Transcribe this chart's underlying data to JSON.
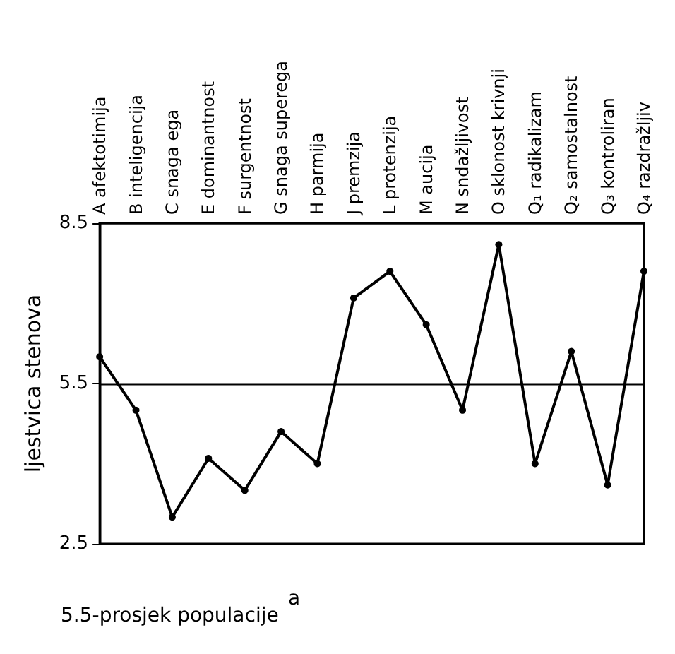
{
  "chart_data": {
    "type": "line",
    "ylabel": "ljestvica stenova",
    "annotations": [
      "5.5-prosjek populacije",
      "a"
    ],
    "categories": [
      "A afektotimija",
      "B inteligencija",
      "C snaga ega",
      "E dominantnost",
      "F surgentnost",
      "G snaga superega",
      "H parmija",
      "J premzija",
      "L protenzija",
      "M aucija",
      "N sndažljivost",
      "O sklonost krivnji",
      "Q₁ radikalizam",
      "Q₂ samostalnost",
      "Q₃ kontroliran",
      "Q₄ razdražljiv"
    ],
    "series": [
      {
        "color": "#000000",
        "values": [
          6.0,
          5.0,
          3.0,
          4.1,
          3.5,
          4.6,
          4.0,
          7.1,
          7.6,
          6.6,
          5.0,
          8.1,
          4.0,
          6.1,
          3.6,
          7.6
        ]
      }
    ],
    "ylim": [
      2.5,
      8.5
    ],
    "yticks": [
      2.5,
      5.5,
      8.5
    ],
    "ref_lines": [
      {
        "axis": "y",
        "value": 5.5,
        "color": "#000000"
      }
    ],
    "marker": "circle",
    "line_style": "solid",
    "grid": false
  }
}
